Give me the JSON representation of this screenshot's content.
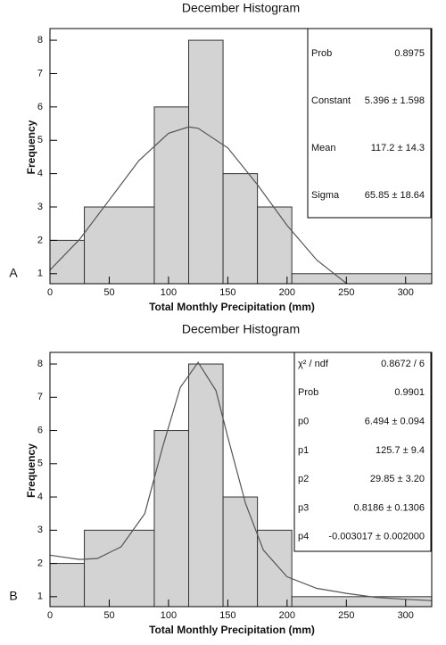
{
  "chart_data": [
    {
      "type": "histogram",
      "panel": "A",
      "title": "December Histogram",
      "xlabel": "Total Monthly Precipitation (mm)",
      "ylabel": "Frequency",
      "bins": [
        0,
        29,
        88,
        117,
        146,
        175,
        204,
        322
      ],
      "counts": [
        2,
        3,
        6,
        8,
        4,
        3,
        1
      ],
      "color": "#d3d3d3",
      "xlim": [
        0,
        322
      ],
      "ylim": [
        0.7,
        8.35
      ],
      "xticks": [
        0,
        50,
        100,
        150,
        200,
        250,
        300
      ],
      "yticks": [
        1,
        2,
        3,
        4,
        5,
        6,
        7,
        8
      ],
      "fit": {
        "x": [
          0,
          25,
          50,
          75,
          100,
          117,
          125,
          150,
          175,
          200,
          225,
          250
        ],
        "y": [
          1.11,
          2.03,
          3.21,
          4.39,
          5.21,
          5.4,
          5.36,
          4.77,
          3.67,
          2.45,
          1.41,
          0.71
        ]
      },
      "stats": [
        {
          "label": "Prob",
          "value": "0.8975"
        },
        {
          "label": "Constant",
          "value": "5.396 ± 1.598"
        },
        {
          "label": "Mean",
          "value": "117.2 ± 14.3"
        },
        {
          "label": "Sigma",
          "value": "65.85 ± 18.64"
        }
      ]
    },
    {
      "type": "histogram",
      "panel": "B",
      "title": "December Histogram",
      "xlabel": "Total Monthly Precipitation (mm)",
      "ylabel": "Frequency",
      "bins": [
        0,
        29,
        88,
        117,
        146,
        175,
        204,
        322
      ],
      "counts": [
        2,
        3,
        6,
        8,
        4,
        3,
        1
      ],
      "color": "#d3d3d3",
      "xlim": [
        0,
        322
      ],
      "ylim": [
        0.7,
        8.35
      ],
      "xticks": [
        0,
        50,
        100,
        150,
        200,
        250,
        300
      ],
      "yticks": [
        1,
        2,
        3,
        4,
        5,
        6,
        7,
        8
      ],
      "fit": {
        "x": [
          0,
          25,
          40,
          60,
          80,
          95,
          110,
          125,
          140,
          150,
          165,
          180,
          200,
          225,
          250,
          275,
          300,
          322
        ],
        "y": [
          2.25,
          2.12,
          2.15,
          2.5,
          3.5,
          5.5,
          7.3,
          8.05,
          7.2,
          5.8,
          3.8,
          2.4,
          1.6,
          1.25,
          1.1,
          0.98,
          0.92,
          0.88
        ]
      },
      "stats": [
        {
          "label": "χ² / ndf",
          "value": "0.8672 / 6"
        },
        {
          "label": "Prob",
          "value": "0.9901"
        },
        {
          "label": "p0",
          "value": "6.494 ± 0.094"
        },
        {
          "label": "p1",
          "value": "125.7 ± 9.4"
        },
        {
          "label": "p2",
          "value": "29.85 ± 3.20"
        },
        {
          "label": "p3",
          "value": "0.8186 ± 0.1306"
        },
        {
          "label": "p4",
          "value": "-0.003017 ± 0.002000"
        }
      ]
    }
  ]
}
